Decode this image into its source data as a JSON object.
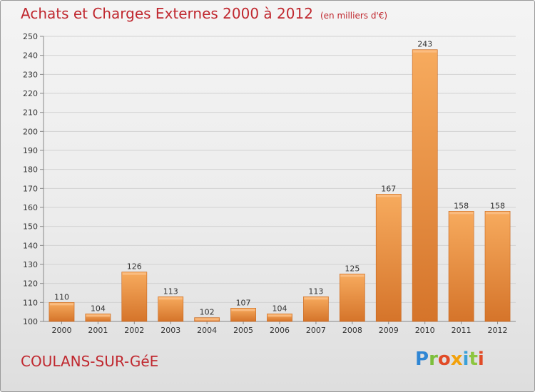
{
  "header": {
    "title": "Achats et Charges Externes 2000 à 2012",
    "unit": "(en milliers d'€)"
  },
  "footer": {
    "city": "COULANS-SUR-GéE",
    "logo_text": "Proxiti"
  },
  "colors": {
    "title": "#c0282f",
    "bar_light": "#f6a85a",
    "bar_dark": "#d9782a",
    "grid": "#d0d0d0",
    "axis_text": "#333333"
  },
  "chart_data": {
    "type": "bar",
    "categories": [
      "2000",
      "2001",
      "2002",
      "2003",
      "2004",
      "2005",
      "2006",
      "2007",
      "2008",
      "2009",
      "2010",
      "2011",
      "2012"
    ],
    "values": [
      110,
      104,
      126,
      113,
      102,
      107,
      104,
      113,
      125,
      167,
      243,
      158,
      158
    ],
    "ylim": [
      100,
      250
    ],
    "yticks": [
      100,
      110,
      120,
      130,
      140,
      150,
      160,
      170,
      180,
      190,
      200,
      210,
      220,
      230,
      240,
      250
    ],
    "grid": true,
    "data_labels": true
  }
}
